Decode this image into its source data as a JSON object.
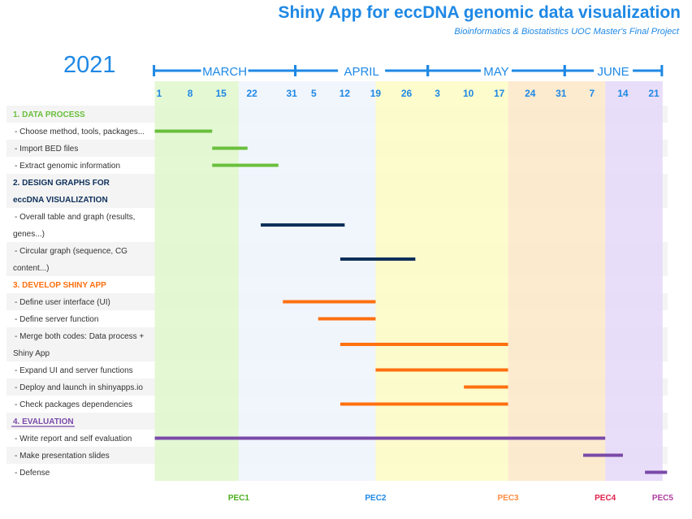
{
  "header": {
    "title": "Shiny App for eccDNA genomic data visualization",
    "subtitle": "Bioinformatics & Biostatistics UOC Master's Final Project",
    "year": "2021"
  },
  "colors": {
    "accent": "#1e88e5",
    "navy": "#0d2f5a",
    "green": "#6abf3c",
    "orange": "#ff7010",
    "purple": "#7a4aa8"
  },
  "chart_data": {
    "type": "gantt",
    "months": [
      {
        "name": "MARCH",
        "start": "2021-02-28",
        "end": "2021-04-01"
      },
      {
        "name": "APRIL",
        "start": "2021-04-01",
        "end": "2021-05-01"
      },
      {
        "name": "MAY",
        "start": "2021-05-01",
        "end": "2021-06-01"
      },
      {
        "name": "JUNE",
        "start": "2021-06-01",
        "end": "2021-06-23"
      }
    ],
    "week_ticks": [
      {
        "label": "1",
        "date": "2021-03-01"
      },
      {
        "label": "8",
        "date": "2021-03-08"
      },
      {
        "label": "15",
        "date": "2021-03-15"
      },
      {
        "label": "22",
        "date": "2021-03-22"
      },
      {
        "label": "31",
        "date": "2021-03-31"
      },
      {
        "label": "5",
        "date": "2021-04-05"
      },
      {
        "label": "12",
        "date": "2021-04-12"
      },
      {
        "label": "19",
        "date": "2021-04-19"
      },
      {
        "label": "26",
        "date": "2021-04-26"
      },
      {
        "label": "3",
        "date": "2021-05-03"
      },
      {
        "label": "10",
        "date": "2021-05-10"
      },
      {
        "label": "17",
        "date": "2021-05-17"
      },
      {
        "label": "24",
        "date": "2021-05-24"
      },
      {
        "label": "31",
        "date": "2021-05-31"
      },
      {
        "label": "7",
        "date": "2021-06-07"
      },
      {
        "label": "14",
        "date": "2021-06-14"
      },
      {
        "label": "21",
        "date": "2021-06-21"
      }
    ],
    "phases": [
      {
        "start": "2021-02-28",
        "end": "2021-03-19",
        "color": "#dff7cc"
      },
      {
        "start": "2021-03-19",
        "end": "2021-04-19",
        "color": "#eef5fd"
      },
      {
        "start": "2021-04-19",
        "end": "2021-05-19",
        "color": "#fbfbc4"
      },
      {
        "start": "2021-05-19",
        "end": "2021-06-10",
        "color": "#fde8c8"
      },
      {
        "start": "2021-06-10",
        "end": "2021-06-23",
        "color": "#e5d8f8"
      }
    ],
    "milestones": [
      {
        "label": "PEC1",
        "date": "2021-03-19",
        "color": "#4caf20"
      },
      {
        "label": "PEC2",
        "date": "2021-04-19",
        "color": "#1e88e5"
      },
      {
        "label": "PEC3",
        "date": "2021-05-19",
        "color": "#ff8c42"
      },
      {
        "label": "PEC4",
        "date": "2021-06-10",
        "color": "#e0204a"
      },
      {
        "label": "PEC5",
        "date": "2021-06-23",
        "color": "#b040a0"
      }
    ],
    "rows": [
      {
        "kind": "section",
        "lines": [
          "1. DATA PROCESS"
        ],
        "color": "#6abf3c",
        "span": 1
      },
      {
        "kind": "task",
        "lines": [
          "- Choose method, tools, packages..."
        ],
        "span": 1,
        "start": "2021-02-28",
        "end": "2021-03-13",
        "color": "#6abf3c"
      },
      {
        "kind": "task",
        "lines": [
          "- Import BED files"
        ],
        "span": 1,
        "start": "2021-03-13",
        "end": "2021-03-21",
        "color": "#6abf3c"
      },
      {
        "kind": "task",
        "lines": [
          "- Extract genomic information"
        ],
        "span": 1,
        "start": "2021-03-13",
        "end": "2021-03-28",
        "color": "#6abf3c"
      },
      {
        "kind": "section",
        "lines": [
          "2.  DESIGN  GRAPHS FOR",
          "eccDNA VISUALIZATION"
        ],
        "color": "#0d2f5a",
        "span": 2
      },
      {
        "kind": "task",
        "lines": [
          "- Overall  table and graph (results,",
          "genes...)"
        ],
        "span": 2,
        "start": "2021-03-24",
        "end": "2021-04-12",
        "color": "#0d2f5a"
      },
      {
        "kind": "task",
        "lines": [
          "- Circular graph (sequence, CG",
          "content...)"
        ],
        "span": 2,
        "start": "2021-04-11",
        "end": "2021-04-28",
        "color": "#0d2f5a"
      },
      {
        "kind": "section",
        "lines": [
          "3. DEVELOP SHINY APP"
        ],
        "color": "#ff7010",
        "span": 1
      },
      {
        "kind": "task",
        "lines": [
          "- Define user interface (UI)"
        ],
        "span": 1,
        "start": "2021-03-29",
        "end": "2021-04-19",
        "color": "#ff7010"
      },
      {
        "kind": "task",
        "lines": [
          "- Define server function"
        ],
        "span": 1,
        "start": "2021-04-06",
        "end": "2021-04-19",
        "color": "#ff7010"
      },
      {
        "kind": "task",
        "lines": [
          "- Merge both codes: Data process +",
          "Shiny App"
        ],
        "span": 2,
        "start": "2021-04-11",
        "end": "2021-05-19",
        "color": "#ff7010"
      },
      {
        "kind": "task",
        "lines": [
          "-  Expand UI and server functions"
        ],
        "span": 1,
        "start": "2021-04-19",
        "end": "2021-05-19",
        "color": "#ff7010"
      },
      {
        "kind": "task",
        "lines": [
          "-  Deploy and launch in shinyapps.io"
        ],
        "span": 1,
        "start": "2021-05-09",
        "end": "2021-05-19",
        "color": "#ff7010"
      },
      {
        "kind": "task",
        "lines": [
          "- Check packages dependencies"
        ],
        "span": 1,
        "start": "2021-04-11",
        "end": "2021-05-19",
        "color": "#ff7010"
      },
      {
        "kind": "section",
        "lines": [
          "4. EVALUATION"
        ],
        "color": "#7a4aa8",
        "span": 1,
        "underline": true
      },
      {
        "kind": "task",
        "lines": [
          "- Write   report  and self  evaluation"
        ],
        "span": 1,
        "start": "2021-02-28",
        "end": "2021-06-10",
        "color": "#7a4aa8"
      },
      {
        "kind": "task",
        "lines": [
          "- Make presentation slides"
        ],
        "span": 1,
        "start": "2021-06-05",
        "end": "2021-06-14",
        "color": "#7a4aa8"
      },
      {
        "kind": "task",
        "lines": [
          "- Defense"
        ],
        "span": 1,
        "start": "2021-06-19",
        "end": "2021-06-24",
        "color": "#7a4aa8"
      }
    ]
  }
}
